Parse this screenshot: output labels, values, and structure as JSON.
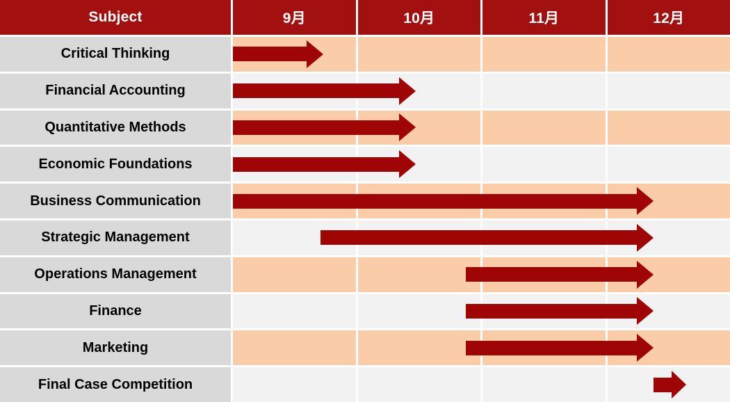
{
  "colors": {
    "header_bg": "#a21010",
    "header_text": "#ffffff",
    "arrow_color": "#a00505",
    "label_bg": "#d9d9d9",
    "label_text": "#000000",
    "separator": "#ffffff",
    "row_alt_colors": [
      "#facda8",
      "#f2f2f2"
    ]
  },
  "chart_data": {
    "type": "bar",
    "variant": "horizontal-gantt",
    "subject_header": "Subject",
    "months": [
      "9月",
      "10月",
      "11月",
      "12月"
    ],
    "month_axis_note": "month units: 0 = start of 9月 (Sep), 4 = end of 12月 (Dec)",
    "rows": [
      {
        "label": "Critical Thinking",
        "start_month": 0,
        "end_month": 0.73
      },
      {
        "label": "Financial Accounting",
        "start_month": 0,
        "end_month": 1.47
      },
      {
        "label": "Quantitative Methods",
        "start_month": 0,
        "end_month": 1.47
      },
      {
        "label": "Economic Foundations",
        "start_month": 0,
        "end_month": 1.47
      },
      {
        "label": "Business Communication",
        "start_month": 0,
        "end_month": 3.385
      },
      {
        "label": "Strategic Management",
        "start_month": 0.705,
        "end_month": 3.385
      },
      {
        "label": "Operations Management",
        "start_month": 1.875,
        "end_month": 3.385
      },
      {
        "label": "Finance",
        "start_month": 1.875,
        "end_month": 3.385
      },
      {
        "label": "Marketing",
        "start_month": 1.875,
        "end_month": 3.385
      },
      {
        "label": "Final Case Competition",
        "start_month": 3.385,
        "end_month": 3.65
      }
    ],
    "legend": "none",
    "grid": "white 3px separators between all cells"
  }
}
